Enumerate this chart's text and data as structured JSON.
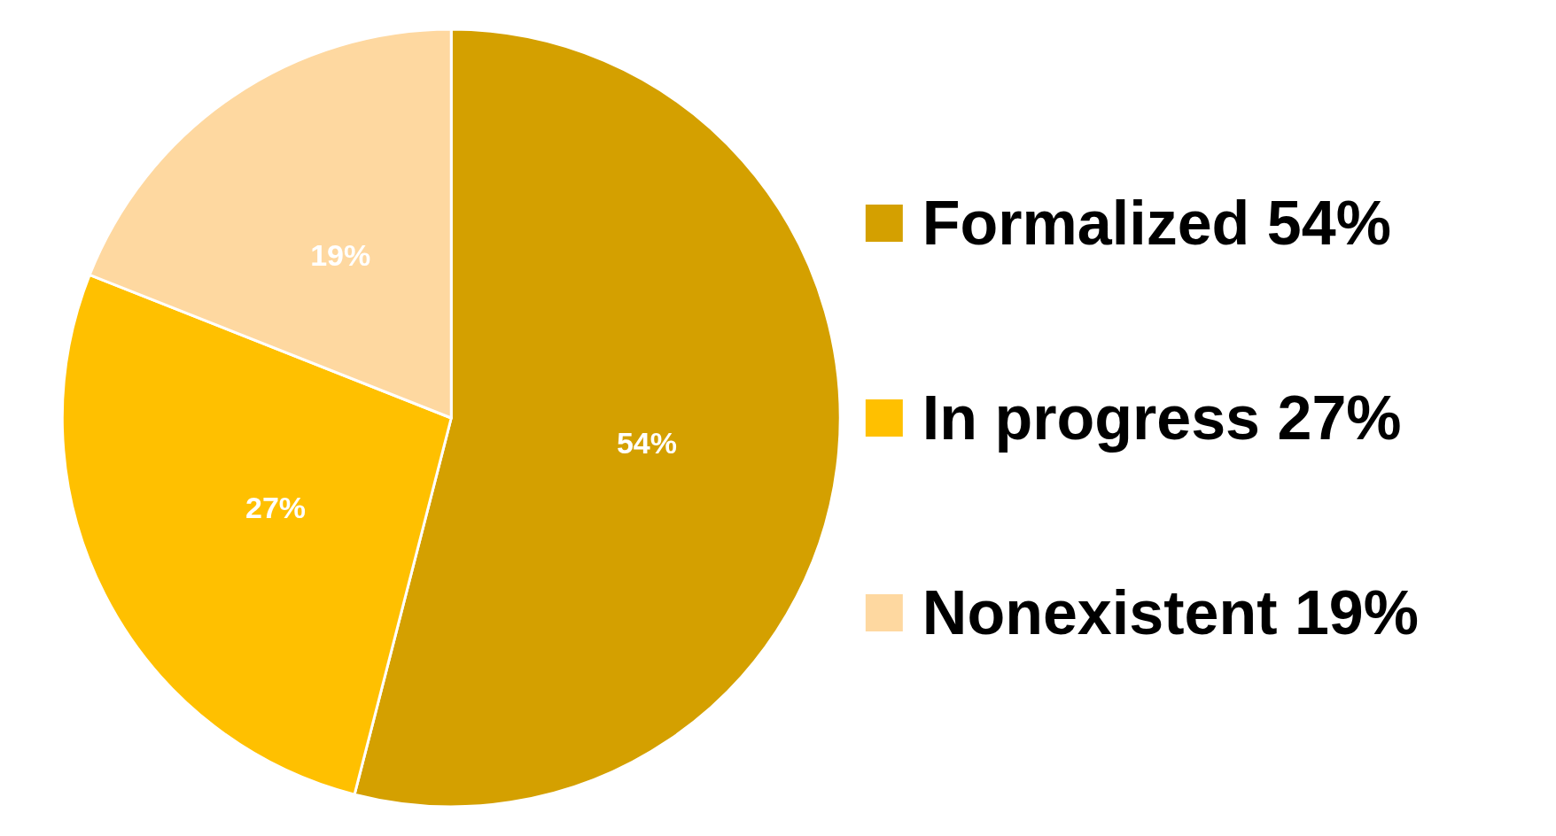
{
  "chart_data": {
    "type": "pie",
    "categories": [
      "Formalized 54%",
      "In progress 27%",
      "Nonexistent 19%"
    ],
    "values": [
      54,
      27,
      19
    ],
    "value_labels": [
      "54%",
      "27%",
      "19%"
    ],
    "colors": [
      "#d4a000",
      "#ffc000",
      "#fed8a0"
    ],
    "legend": "right"
  }
}
